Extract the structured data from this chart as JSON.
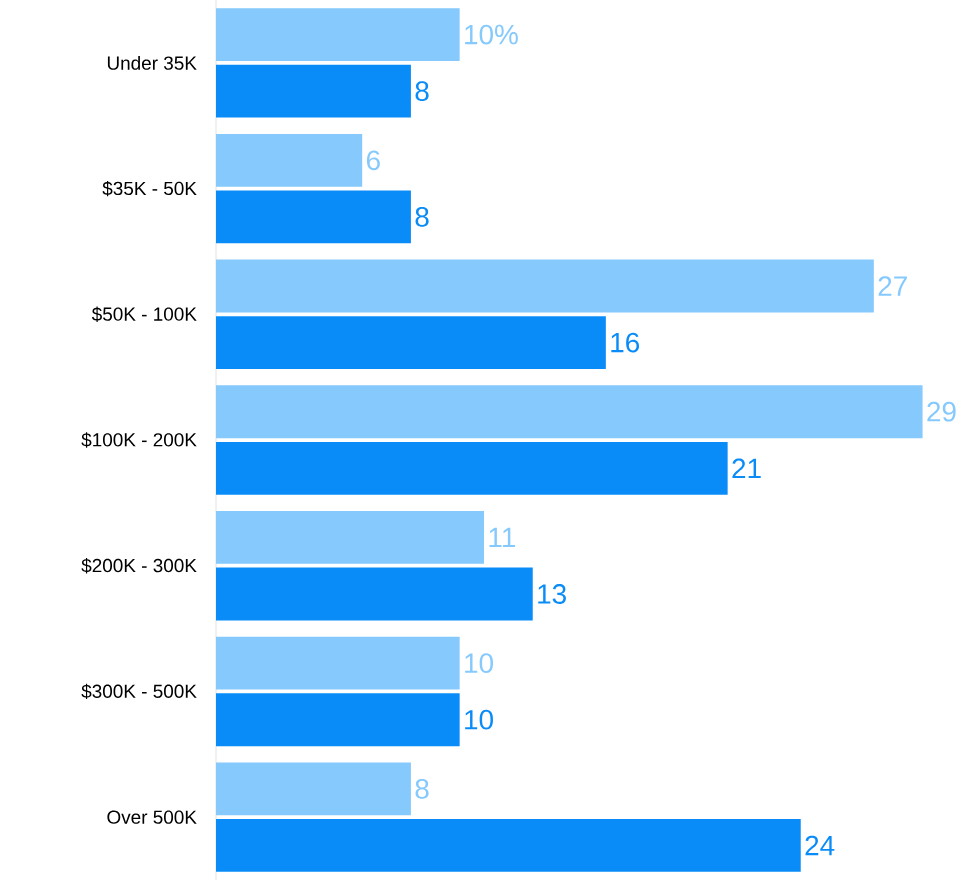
{
  "chart_data": {
    "type": "bar",
    "orientation": "horizontal",
    "categories": [
      "Under 35K",
      "$35K - 50K",
      "$50K - 100K",
      "$100K - 200K",
      "$200K - 300K",
      "$300K - 500K",
      "Over 500K"
    ],
    "series": [
      {
        "color": "#85c9fd",
        "values": [
          10,
          6,
          27,
          29,
          11,
          10,
          8
        ],
        "value_labels": [
          "10%",
          "6",
          "27",
          "29",
          "11",
          "10",
          "8"
        ]
      },
      {
        "color": "#0a8cf8",
        "values": [
          8,
          8,
          16,
          21,
          13,
          10,
          24
        ],
        "value_labels": [
          "8",
          "8",
          "16",
          "21",
          "13",
          "10",
          "24"
        ]
      }
    ]
  }
}
